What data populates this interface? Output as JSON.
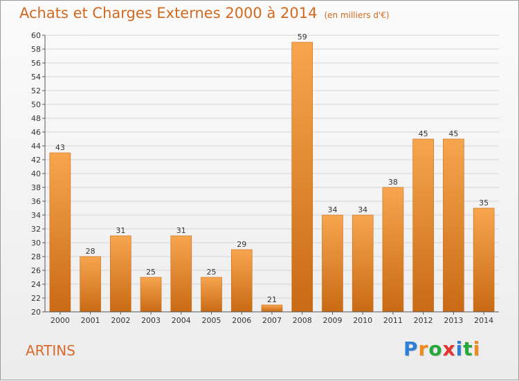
{
  "header": {
    "title": "Achats et Charges Externes 2000 à 2014",
    "subtitle": "(en milliers d'€)"
  },
  "footer": {
    "commune": "ARTINS",
    "logo": {
      "letters": [
        "P",
        "r",
        "o",
        "x",
        "i",
        "t",
        "i"
      ],
      "colors": [
        "#2e7fd6",
        "#f08a1c",
        "#27a83a",
        "#e3342f",
        "#2e7fd6",
        "#27a83a",
        "#f08a1c"
      ]
    }
  },
  "chart_data": {
    "type": "bar",
    "categories": [
      "2000",
      "2001",
      "2002",
      "2003",
      "2004",
      "2005",
      "2006",
      "2007",
      "2008",
      "2009",
      "2010",
      "2011",
      "2012",
      "2013",
      "2014"
    ],
    "values": [
      43,
      28,
      31,
      25,
      31,
      25,
      29,
      21,
      59,
      34,
      34,
      38,
      45,
      45,
      35
    ],
    "ylim": [
      20,
      60
    ],
    "yticks": [
      20,
      22,
      24,
      26,
      28,
      30,
      32,
      34,
      36,
      38,
      40,
      42,
      44,
      46,
      48,
      50,
      52,
      54,
      56,
      58,
      60
    ],
    "grid": true,
    "data_labels": true,
    "colors": {
      "bar_light": "#f7a54f",
      "bar_dark": "#c96a14",
      "grid": "#d5d5d5",
      "axis": "#555555",
      "text": "#333333"
    }
  }
}
